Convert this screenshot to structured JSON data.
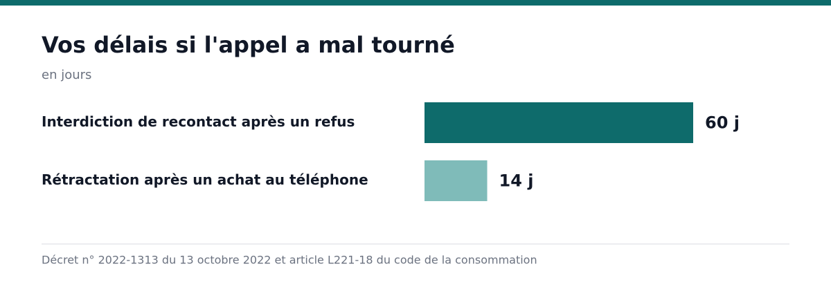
{
  "chart_data": {
    "type": "bar",
    "orientation": "horizontal",
    "title": "Vos délais si l'appel a mal tourné",
    "subtitle": "en jours",
    "categories": [
      "Interdiction de recontact après un refus",
      "Rétractation après un achat au téléphone"
    ],
    "values": [
      60,
      14
    ],
    "value_labels": [
      "60 j",
      "14 j"
    ],
    "colors": [
      "#0e6b6b",
      "#7fbbb9"
    ],
    "source": "Décret n° 2022-1313 du 13 octobre 2022 et article L221-18 du code de la consommation"
  }
}
